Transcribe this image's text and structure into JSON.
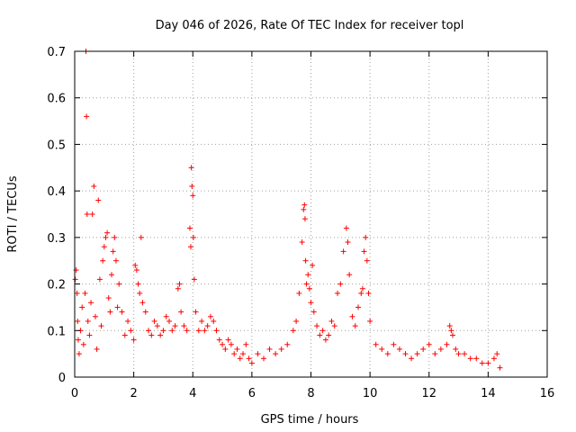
{
  "chart_data": {
    "type": "scatter",
    "title": "Day 046 of 2026, Rate Of TEC Index for receiver topl",
    "xlabel": "GPS time / hours",
    "ylabel": "ROTI / TECUs",
    "xlim": [
      0,
      16
    ],
    "ylim": [
      0,
      0.7
    ],
    "x_ticks": [
      0,
      2,
      4,
      6,
      8,
      10,
      12,
      14,
      16
    ],
    "y_ticks": [
      0,
      0.1,
      0.2,
      0.3,
      0.4,
      0.5,
      0.6,
      0.7
    ],
    "x_tick_labels": [
      "0",
      "2",
      "4",
      "6",
      "8",
      "10",
      "12",
      "14",
      "16"
    ],
    "y_tick_labels": [
      "0",
      "0.1",
      "0.2",
      "0.3",
      "0.4",
      "0.5",
      "0.6",
      "0.7"
    ],
    "grid": true,
    "marker": "+",
    "color": "#ff0000",
    "series": [
      {
        "name": "ROTI",
        "points": [
          [
            0.02,
            0.21
          ],
          [
            0.05,
            0.23
          ],
          [
            0.08,
            0.18
          ],
          [
            0.1,
            0.12
          ],
          [
            0.12,
            0.08
          ],
          [
            0.15,
            0.05
          ],
          [
            0.2,
            0.1
          ],
          [
            0.25,
            0.15
          ],
          [
            0.3,
            0.07
          ],
          [
            0.35,
            0.18
          ],
          [
            0.38,
            0.7
          ],
          [
            0.4,
            0.56
          ],
          [
            0.42,
            0.35
          ],
          [
            0.45,
            0.12
          ],
          [
            0.5,
            0.09
          ],
          [
            0.55,
            0.16
          ],
          [
            0.6,
            0.35
          ],
          [
            0.65,
            0.41
          ],
          [
            0.7,
            0.13
          ],
          [
            0.75,
            0.06
          ],
          [
            0.8,
            0.38
          ],
          [
            0.85,
            0.21
          ],
          [
            0.9,
            0.11
          ],
          [
            0.95,
            0.25
          ],
          [
            1.0,
            0.28
          ],
          [
            1.05,
            0.3
          ],
          [
            1.1,
            0.31
          ],
          [
            1.15,
            0.17
          ],
          [
            1.2,
            0.14
          ],
          [
            1.25,
            0.22
          ],
          [
            1.3,
            0.27
          ],
          [
            1.35,
            0.3
          ],
          [
            1.4,
            0.25
          ],
          [
            1.45,
            0.15
          ],
          [
            1.5,
            0.2
          ],
          [
            1.6,
            0.14
          ],
          [
            1.7,
            0.09
          ],
          [
            1.8,
            0.12
          ],
          [
            1.9,
            0.1
          ],
          [
            2.0,
            0.08
          ],
          [
            2.05,
            0.24
          ],
          [
            2.1,
            0.23
          ],
          [
            2.15,
            0.2
          ],
          [
            2.2,
            0.18
          ],
          [
            2.25,
            0.3
          ],
          [
            2.3,
            0.16
          ],
          [
            2.4,
            0.14
          ],
          [
            2.5,
            0.1
          ],
          [
            2.6,
            0.09
          ],
          [
            2.7,
            0.12
          ],
          [
            2.8,
            0.11
          ],
          [
            2.9,
            0.09
          ],
          [
            3.0,
            0.1
          ],
          [
            3.1,
            0.13
          ],
          [
            3.2,
            0.12
          ],
          [
            3.3,
            0.1
          ],
          [
            3.4,
            0.11
          ],
          [
            3.5,
            0.19
          ],
          [
            3.55,
            0.2
          ],
          [
            3.6,
            0.14
          ],
          [
            3.7,
            0.11
          ],
          [
            3.8,
            0.1
          ],
          [
            3.9,
            0.32
          ],
          [
            3.93,
            0.28
          ],
          [
            3.95,
            0.45
          ],
          [
            3.97,
            0.41
          ],
          [
            4.0,
            0.39
          ],
          [
            4.02,
            0.3
          ],
          [
            4.05,
            0.21
          ],
          [
            4.1,
            0.14
          ],
          [
            4.2,
            0.1
          ],
          [
            4.3,
            0.12
          ],
          [
            4.4,
            0.1
          ],
          [
            4.5,
            0.11
          ],
          [
            4.6,
            0.13
          ],
          [
            4.7,
            0.12
          ],
          [
            4.8,
            0.1
          ],
          [
            4.9,
            0.08
          ],
          [
            5.0,
            0.07
          ],
          [
            5.1,
            0.06
          ],
          [
            5.2,
            0.08
          ],
          [
            5.3,
            0.07
          ],
          [
            5.4,
            0.05
          ],
          [
            5.5,
            0.06
          ],
          [
            5.6,
            0.04
          ],
          [
            5.7,
            0.05
          ],
          [
            5.8,
            0.07
          ],
          [
            5.9,
            0.04
          ],
          [
            6.0,
            0.03
          ],
          [
            6.2,
            0.05
          ],
          [
            6.4,
            0.04
          ],
          [
            6.6,
            0.06
          ],
          [
            6.8,
            0.05
          ],
          [
            7.0,
            0.06
          ],
          [
            7.2,
            0.07
          ],
          [
            7.4,
            0.1
          ],
          [
            7.5,
            0.12
          ],
          [
            7.6,
            0.18
          ],
          [
            7.7,
            0.29
          ],
          [
            7.75,
            0.36
          ],
          [
            7.78,
            0.37
          ],
          [
            7.8,
            0.34
          ],
          [
            7.82,
            0.25
          ],
          [
            7.85,
            0.2
          ],
          [
            7.9,
            0.22
          ],
          [
            7.95,
            0.19
          ],
          [
            8.0,
            0.16
          ],
          [
            8.05,
            0.24
          ],
          [
            8.1,
            0.14
          ],
          [
            8.2,
            0.11
          ],
          [
            8.3,
            0.09
          ],
          [
            8.4,
            0.1
          ],
          [
            8.5,
            0.08
          ],
          [
            8.6,
            0.09
          ],
          [
            8.7,
            0.12
          ],
          [
            8.8,
            0.11
          ],
          [
            8.9,
            0.18
          ],
          [
            9.0,
            0.2
          ],
          [
            9.1,
            0.27
          ],
          [
            9.2,
            0.32
          ],
          [
            9.25,
            0.29
          ],
          [
            9.3,
            0.22
          ],
          [
            9.4,
            0.13
          ],
          [
            9.5,
            0.11
          ],
          [
            9.6,
            0.15
          ],
          [
            9.7,
            0.18
          ],
          [
            9.75,
            0.19
          ],
          [
            9.8,
            0.27
          ],
          [
            9.85,
            0.3
          ],
          [
            9.9,
            0.25
          ],
          [
            9.95,
            0.18
          ],
          [
            10.0,
            0.12
          ],
          [
            10.2,
            0.07
          ],
          [
            10.4,
            0.06
          ],
          [
            10.6,
            0.05
          ],
          [
            10.8,
            0.07
          ],
          [
            11.0,
            0.06
          ],
          [
            11.2,
            0.05
          ],
          [
            11.4,
            0.04
          ],
          [
            11.6,
            0.05
          ],
          [
            11.8,
            0.06
          ],
          [
            12.0,
            0.07
          ],
          [
            12.2,
            0.05
          ],
          [
            12.4,
            0.06
          ],
          [
            12.6,
            0.07
          ],
          [
            12.7,
            0.11
          ],
          [
            12.75,
            0.1
          ],
          [
            12.8,
            0.09
          ],
          [
            12.9,
            0.06
          ],
          [
            13.0,
            0.05
          ],
          [
            13.2,
            0.05
          ],
          [
            13.4,
            0.04
          ],
          [
            13.6,
            0.04
          ],
          [
            13.8,
            0.03
          ],
          [
            14.0,
            0.03
          ],
          [
            14.2,
            0.04
          ],
          [
            14.3,
            0.05
          ],
          [
            14.4,
            0.02
          ]
        ]
      }
    ]
  }
}
